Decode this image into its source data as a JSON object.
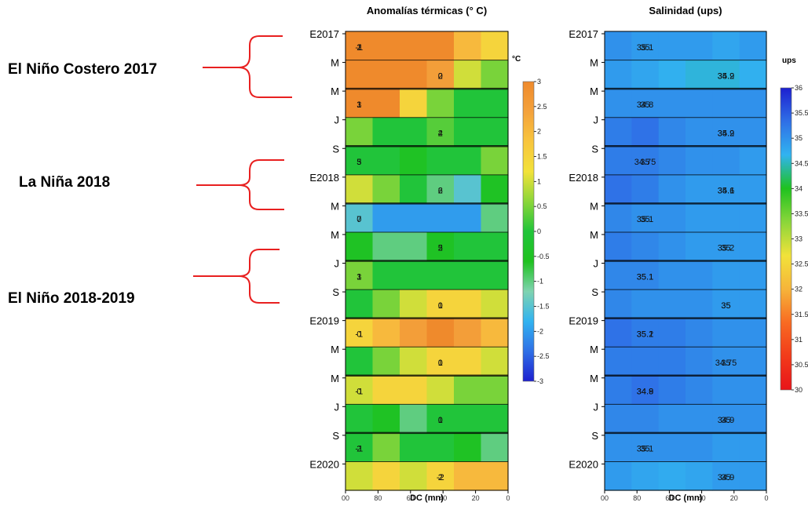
{
  "annotations": [
    {
      "label": "El Niño Costero 2017"
    },
    {
      "label": "La Niña 2018"
    },
    {
      "label": "El Niño 2018-2019"
    }
  ],
  "chart_data": [
    {
      "type": "heatmap",
      "title": "Anomalías térmicas (° C)",
      "xlabel": "DC (mn)",
      "ylabel": "",
      "x_ticks": [
        "00",
        "80",
        "60",
        "40",
        "20",
        "0"
      ],
      "y_ticks": [
        "E2017",
        "M",
        "M",
        "J",
        "S",
        "E2018",
        "M",
        "M",
        "J",
        "S",
        "E2019",
        "M",
        "M",
        "J",
        "S",
        "E2020"
      ],
      "x": [
        100,
        80,
        60,
        40,
        20,
        0
      ],
      "y": [
        "E2017",
        "M",
        "M",
        "J",
        "S",
        "E2018",
        "M",
        "M",
        "J",
        "S",
        "E2019",
        "M",
        "M",
        "J",
        "S",
        "E2020"
      ],
      "xlim": [
        100,
        0
      ],
      "colorbar": {
        "unit": "°C",
        "ticks": [
          "3",
          "2.5",
          "2",
          "1.5",
          "1",
          "0.5",
          "0",
          "-0.5",
          "-1",
          "-1.5",
          "-2",
          "-2.5",
          "-3"
        ],
        "range": [
          -3,
          3
        ],
        "colors": [
          "#1d20d0",
          "#2f6fe6",
          "#31b3f0",
          "#7fd3b0",
          "#1fc21f",
          "#21c43a",
          "#8bd63a",
          "#f2e23a",
          "#f8c53d",
          "#f4a23c",
          "#ef8a2c"
        ]
      },
      "contour_labels": [
        "1",
        "2",
        "3",
        "4",
        "5",
        "6",
        "7",
        "5",
        "3",
        "1",
        "0",
        "1",
        "0",
        "0",
        "-1",
        "-2",
        "-1",
        "0",
        "1",
        "2",
        "3",
        "2",
        "0",
        "2",
        "1",
        "0",
        "-1",
        "0",
        "-1",
        "1",
        "2",
        "2",
        "2"
      ],
      "values": [
        [
          3.0,
          4.0,
          4.5,
          3.0,
          2.0,
          1.5
        ],
        [
          5.0,
          5.5,
          4.0,
          2.5,
          1.0,
          0.5
        ],
        [
          4.0,
          3.0,
          1.5,
          0.5,
          0.0,
          0.0
        ],
        [
          0.5,
          0.0,
          0.0,
          0.3,
          0.0,
          0.0
        ],
        [
          0.0,
          0.0,
          -0.5,
          0.0,
          0.0,
          0.5
        ],
        [
          1.0,
          0.5,
          0.0,
          -1.0,
          -1.5,
          -0.5
        ],
        [
          -1.5,
          -2.0,
          -2.0,
          -2.0,
          -2.0,
          -1.0
        ],
        [
          -0.5,
          -1.0,
          -1.0,
          -0.5,
          0.0,
          0.0
        ],
        [
          0.5,
          0.0,
          0.0,
          0.0,
          0.0,
          0.0
        ],
        [
          0.0,
          0.5,
          1.0,
          1.5,
          1.5,
          1.0
        ],
        [
          1.5,
          2.0,
          2.5,
          3.0,
          2.5,
          2.0
        ],
        [
          0.0,
          0.5,
          1.0,
          1.5,
          1.5,
          1.0
        ],
        [
          1.0,
          1.5,
          1.5,
          1.0,
          0.5,
          0.5
        ],
        [
          0.0,
          -0.5,
          -1.0,
          0.0,
          0.0,
          0.0
        ],
        [
          0.0,
          0.5,
          0.0,
          0.0,
          -0.5,
          -1.0
        ],
        [
          1.0,
          1.5,
          1.0,
          1.5,
          2.0,
          2.0
        ]
      ]
    },
    {
      "type": "heatmap",
      "title": "Salinidad (ups)",
      "xlabel": "DC (mn)",
      "ylabel": "",
      "x_ticks": [
        "00",
        "80",
        "60",
        "40",
        "20",
        "0"
      ],
      "y_ticks": [
        "E2017",
        "M",
        "M",
        "J",
        "S",
        "E2018",
        "M",
        "M",
        "J",
        "S",
        "E2019",
        "M",
        "M",
        "J",
        "S",
        "E2020"
      ],
      "x": [
        100,
        80,
        60,
        40,
        20,
        0
      ],
      "y": [
        "E2017",
        "M",
        "M",
        "J",
        "S",
        "E2018",
        "M",
        "M",
        "J",
        "S",
        "E2019",
        "M",
        "M",
        "J",
        "S",
        "E2020"
      ],
      "xlim": [
        100,
        0
      ],
      "colorbar": {
        "unit": "ups",
        "ticks": [
          "36",
          "35.5",
          "35",
          "34.5",
          "34",
          "33.5",
          "33",
          "32.5",
          "32",
          "31.5",
          "31",
          "30.5",
          "30"
        ],
        "range": [
          30,
          36
        ],
        "colors": [
          "#e8141a",
          "#f23a1a",
          "#f86a22",
          "#f6b43a",
          "#f2e23a",
          "#8bd63a",
          "#1fc21f",
          "#31b3f0",
          "#2f6fe6",
          "#1d20d0"
        ]
      },
      "contour_labels": [
        "35",
        "34.9",
        "34.8",
        "34.9",
        "34.75",
        "34.6",
        "35",
        "35.2",
        "35.1",
        "35",
        "35.1",
        "35",
        "34.9",
        "35",
        "35.1",
        "35",
        "35.1",
        "35.2",
        "35",
        "35.2",
        "35",
        "35.1",
        "35.1",
        "35",
        "35.1",
        "35",
        "35.2",
        "34.75",
        "34.8",
        "34.9",
        "35",
        "34.9"
      ],
      "values": [
        [
          35.0,
          34.9,
          34.9,
          34.9,
          34.8,
          34.9
        ],
        [
          34.9,
          34.8,
          34.7,
          34.6,
          34.6,
          34.7
        ],
        [
          35.0,
          35.0,
          35.0,
          35.0,
          35.0,
          35.0
        ],
        [
          35.2,
          35.3,
          35.1,
          35.0,
          35.0,
          35.0
        ],
        [
          35.2,
          35.2,
          35.1,
          35.0,
          35.0,
          34.9
        ],
        [
          35.3,
          35.2,
          35.0,
          34.9,
          34.9,
          34.9
        ],
        [
          35.1,
          35.0,
          35.0,
          34.9,
          34.9,
          34.9
        ],
        [
          35.2,
          35.1,
          35.0,
          34.9,
          34.9,
          34.9
        ],
        [
          35.1,
          35.1,
          35.0,
          35.0,
          34.9,
          34.9
        ],
        [
          35.1,
          35.0,
          35.0,
          35.0,
          34.9,
          34.9
        ],
        [
          35.3,
          35.2,
          35.2,
          35.1,
          35.0,
          35.0
        ],
        [
          35.2,
          35.2,
          35.2,
          35.1,
          35.0,
          35.0
        ],
        [
          35.2,
          35.3,
          35.2,
          35.1,
          35.0,
          35.0
        ],
        [
          35.1,
          35.1,
          35.0,
          35.0,
          35.0,
          35.0
        ],
        [
          35.0,
          35.0,
          35.0,
          35.0,
          34.9,
          34.9
        ],
        [
          34.9,
          34.8,
          34.75,
          34.8,
          34.9,
          34.9
        ]
      ]
    }
  ]
}
